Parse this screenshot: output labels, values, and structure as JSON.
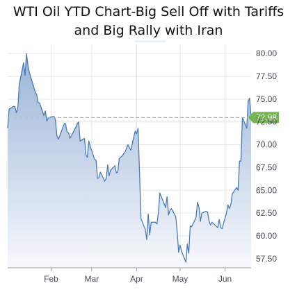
{
  "title_lines": [
    "WTI Oil YTD Chart-Big Sell Off with Tariffs",
    "and Big Rally with Iran"
  ],
  "chart_data": {
    "type": "area",
    "title": "WTI Oil YTD Chart-Big Sell Off with Tariffs and Big Rally with Iran",
    "xlabel": "",
    "ylabel": "",
    "x_ticks": [
      "Feb",
      "Mar",
      "Apr",
      "May",
      "Jun"
    ],
    "y_ticks": [
      "57.50",
      "60.00",
      "62.50",
      "65.00",
      "67.50",
      "70.00",
      "72.50",
      "75.00",
      "77.50",
      "80.00"
    ],
    "ylim": [
      56.5,
      81.0
    ],
    "x_range": [
      "2025-01-02",
      "2025-06-19"
    ],
    "grid": true,
    "current_value": 72.98,
    "current_value_label": "72.98",
    "series": [
      {
        "x": [
          "2025-01-02",
          "2025-01-03",
          "2025-01-06",
          "2025-01-07",
          "2025-01-08",
          "2025-01-09",
          "2025-01-10",
          "2025-01-13",
          "2025-01-14",
          "2025-01-15",
          "2025-01-16",
          "2025-01-17",
          "2025-01-21",
          "2025-01-22",
          "2025-01-23",
          "2025-01-24",
          "2025-01-27",
          "2025-01-28",
          "2025-01-29",
          "2025-01-30",
          "2025-01-31",
          "2025-02-03",
          "2025-02-04",
          "2025-02-05",
          "2025-02-06",
          "2025-02-07",
          "2025-02-10",
          "2025-02-11",
          "2025-02-12",
          "2025-02-13",
          "2025-02-14",
          "2025-02-18",
          "2025-02-19",
          "2025-02-20",
          "2025-02-21",
          "2025-02-24",
          "2025-02-25",
          "2025-02-26",
          "2025-02-27",
          "2025-02-28",
          "2025-03-03",
          "2025-03-04",
          "2025-03-05",
          "2025-03-06",
          "2025-03-07",
          "2025-03-10",
          "2025-03-11",
          "2025-03-12",
          "2025-03-13",
          "2025-03-14",
          "2025-03-17",
          "2025-03-18",
          "2025-03-19",
          "2025-03-20",
          "2025-03-21",
          "2025-03-24",
          "2025-03-25",
          "2025-03-26",
          "2025-03-27",
          "2025-03-28",
          "2025-03-31",
          "2025-04-01",
          "2025-04-02",
          "2025-04-03",
          "2025-04-04",
          "2025-04-07",
          "2025-04-08",
          "2025-04-09",
          "2025-04-10",
          "2025-04-11",
          "2025-04-14",
          "2025-04-15",
          "2025-04-16",
          "2025-04-17",
          "2025-04-21",
          "2025-04-22",
          "2025-04-23",
          "2025-04-24",
          "2025-04-25",
          "2025-04-28",
          "2025-04-29",
          "2025-04-30",
          "2025-05-01",
          "2025-05-02",
          "2025-05-05",
          "2025-05-06",
          "2025-05-07",
          "2025-05-08",
          "2025-05-09",
          "2025-05-12",
          "2025-05-13",
          "2025-05-14",
          "2025-05-15",
          "2025-05-16",
          "2025-05-19",
          "2025-05-20",
          "2025-05-21",
          "2025-05-22",
          "2025-05-23",
          "2025-05-27",
          "2025-05-28",
          "2025-05-29",
          "2025-05-30",
          "2025-06-02",
          "2025-06-03",
          "2025-06-04",
          "2025-06-05",
          "2025-06-06",
          "2025-06-09",
          "2025-06-10",
          "2025-06-11",
          "2025-06-12",
          "2025-06-13",
          "2025-06-16",
          "2025-06-17",
          "2025-06-18",
          "2025-06-19"
        ],
        "values": [
          71.8,
          73.9,
          74.2,
          74.2,
          73.5,
          74.0,
          76.6,
          79.0,
          77.6,
          80.0,
          78.7,
          77.9,
          75.8,
          75.5,
          74.6,
          74.6,
          73.2,
          73.7,
          72.6,
          72.9,
          73.0,
          73.1,
          72.7,
          71.0,
          70.6,
          71.0,
          72.3,
          72.3,
          71.4,
          71.3,
          70.7,
          71.9,
          72.3,
          72.5,
          70.4,
          70.7,
          68.9,
          68.6,
          70.4,
          69.8,
          68.4,
          68.3,
          66.3,
          66.4,
          67.0,
          66.0,
          66.3,
          67.8,
          66.6,
          67.2,
          67.7,
          66.9,
          67.0,
          68.5,
          68.6,
          69.2,
          69.6,
          70.0,
          69.7,
          69.4,
          71.5,
          71.2,
          71.8,
          66.9,
          61.9,
          60.7,
          59.6,
          62.4,
          60.1,
          61.5,
          61.5,
          61.3,
          62.5,
          64.7,
          63.1,
          64.3,
          62.3,
          62.8,
          63.0,
          62.1,
          60.4,
          58.2,
          59.0,
          58.3,
          57.1,
          59.1,
          58.1,
          61.1,
          61.0,
          62.0,
          63.7,
          63.2,
          61.6,
          62.5,
          62.7,
          62.6,
          61.6,
          61.2,
          61.5,
          60.9,
          61.8,
          60.9,
          60.8,
          62.5,
          63.4,
          63.0,
          63.4,
          64.6,
          65.3,
          65.0,
          68.2,
          68.2,
          72.98,
          71.8,
          74.8,
          75.1,
          72.98
        ]
      }
    ]
  },
  "colors": {
    "line": "#4a7ab5",
    "fill_top": "#9ab4d8",
    "fill_bottom": "#f7f9fc",
    "grid": "#e3e6ea",
    "current_line": "#a9cf8f",
    "current_badge": "#74b453",
    "current_text": "#ffffff",
    "axis_text": "#444a55"
  }
}
